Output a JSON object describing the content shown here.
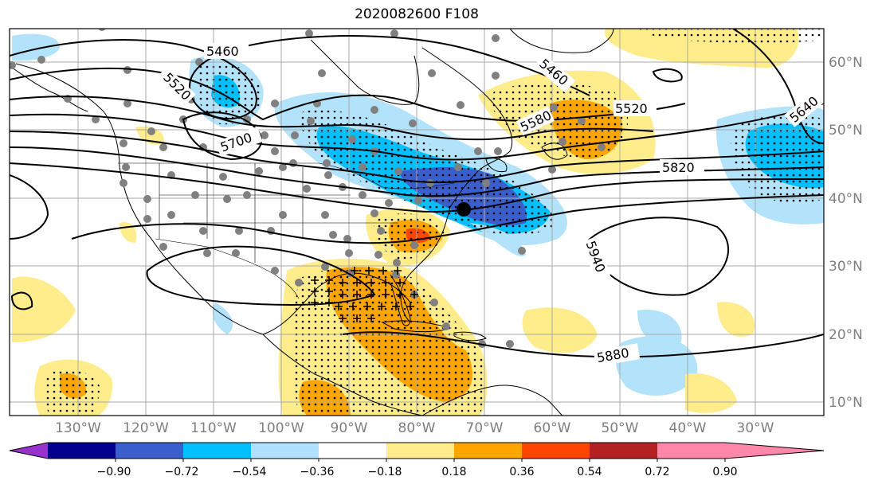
{
  "title": "2020082600 F108",
  "lat_labels": [
    "10°N",
    "20°N",
    "30°N",
    "40°N",
    "50°N",
    "60°N"
  ],
  "lon_labels": [
    "130°W",
    "120°W",
    "110°W",
    "100°W",
    "90°W",
    "80°W",
    "70°W",
    "60°W",
    "50°W",
    "40°W",
    "30°W"
  ],
  "contour_labels": [
    "5460",
    "5520",
    "5700",
    "5460",
    "5520",
    "5580",
    "5640",
    "5820",
    "5940",
    "5880"
  ],
  "colorbar": {
    "ticks": [
      "−0.90",
      "−0.72",
      "−0.54",
      "−0.36",
      "−0.18",
      "0.18",
      "0.36",
      "0.54",
      "0.72",
      "0.90"
    ],
    "colors": [
      "#9932cc",
      "#00008b",
      "#3a5fcd",
      "#00bfff",
      "#b0e2ff",
      "#ffffff",
      "#ffec8b",
      "#ffa500",
      "#ff4500",
      "#b22222",
      "#ff88aa"
    ]
  },
  "colors": {
    "neg_light": "#b3e3fb",
    "neg_mid": "#00bfff",
    "neg_strong": "#3a5fcd",
    "pos_light": "#ffec8b",
    "pos_mid": "#ffa500",
    "pos_strong": "#ff4500"
  }
}
